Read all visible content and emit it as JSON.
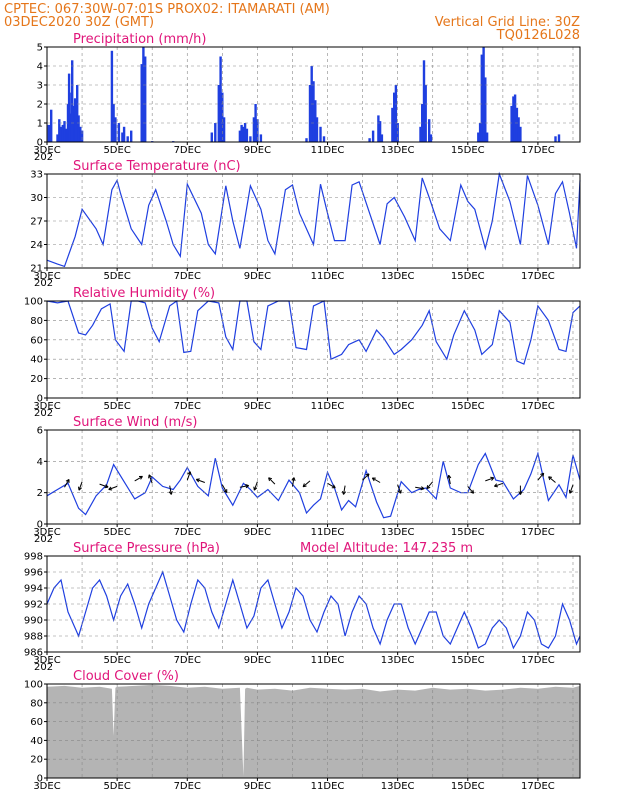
{
  "header": {
    "left_line1": "CPTEC:   067:30W-07:01S   PROX02: ITAMARATI (AM)",
    "left_line2": "03DEC2020 30Z (GMT)",
    "right_line2": "Vertical Grid Line: 30Z",
    "right_line3": "TQ0126L028"
  },
  "colors": {
    "header": "#e5761a",
    "title": "#e0157a",
    "series": "#1f3fe0",
    "cloud": "#b4b4b4",
    "grid": "#888888"
  },
  "x_axis": {
    "tick_labels": [
      "3DEC",
      "5DEC",
      "7DEC",
      "9DEC",
      "11DEC",
      "13DEC",
      "15DEC",
      "17DEC"
    ],
    "tick_days": [
      0,
      2,
      4,
      6,
      8,
      10,
      12,
      14
    ],
    "year_stub": "202",
    "range_days": [
      0,
      15.2
    ],
    "vertical_grid_interval_days": 1
  },
  "chart_data": [
    {
      "id": "precip",
      "type": "bar",
      "title": "Precipitation (mm/h)",
      "ylim": [
        0,
        5
      ],
      "yticks": [
        0,
        1,
        2,
        3,
        4,
        5
      ],
      "unit": "mm/h",
      "points": [
        [
          0.05,
          0.9
        ],
        [
          0.12,
          1.7
        ],
        [
          0.3,
          0.4
        ],
        [
          0.35,
          1.2
        ],
        [
          0.4,
          0.8
        ],
        [
          0.45,
          0.9
        ],
        [
          0.5,
          1.1
        ],
        [
          0.55,
          0.7
        ],
        [
          0.6,
          2.0
        ],
        [
          0.63,
          3.6
        ],
        [
          0.66,
          1.5
        ],
        [
          0.7,
          2.6
        ],
        [
          0.72,
          4.3
        ],
        [
          0.76,
          1.9
        ],
        [
          0.8,
          2.3
        ],
        [
          0.82,
          1.6
        ],
        [
          0.86,
          3.0
        ],
        [
          0.9,
          1.4
        ],
        [
          0.95,
          0.8
        ],
        [
          1.0,
          0.6
        ],
        [
          1.85,
          4.8
        ],
        [
          1.9,
          2.0
        ],
        [
          1.95,
          1.3
        ],
        [
          2.05,
          1.0
        ],
        [
          2.15,
          0.5
        ],
        [
          2.2,
          0.8
        ],
        [
          2.3,
          0.3
        ],
        [
          2.4,
          0.6
        ],
        [
          2.7,
          4.1
        ],
        [
          2.75,
          5.0
        ],
        [
          2.8,
          4.5
        ],
        [
          3.0,
          0.05
        ],
        [
          3.6,
          0.05
        ],
        [
          4.7,
          0.5
        ],
        [
          4.8,
          1.0
        ],
        [
          4.9,
          3.0
        ],
        [
          4.95,
          4.5
        ],
        [
          5.0,
          2.6
        ],
        [
          5.05,
          1.3
        ],
        [
          5.5,
          0.6
        ],
        [
          5.55,
          0.9
        ],
        [
          5.6,
          0.8
        ],
        [
          5.65,
          1.0
        ],
        [
          5.7,
          0.7
        ],
        [
          5.8,
          0.3
        ],
        [
          5.9,
          1.3
        ],
        [
          5.95,
          2.0
        ],
        [
          6.0,
          1.2
        ],
        [
          6.1,
          0.4
        ],
        [
          7.4,
          0.2
        ],
        [
          7.5,
          3.0
        ],
        [
          7.55,
          4.0
        ],
        [
          7.6,
          3.2
        ],
        [
          7.65,
          2.2
        ],
        [
          7.7,
          1.3
        ],
        [
          7.8,
          0.8
        ],
        [
          7.9,
          0.3
        ],
        [
          9.2,
          0.2
        ],
        [
          9.3,
          0.6
        ],
        [
          9.45,
          1.4
        ],
        [
          9.5,
          1.1
        ],
        [
          9.55,
          0.4
        ],
        [
          9.85,
          1.8
        ],
        [
          9.9,
          2.6
        ],
        [
          9.95,
          3.0
        ],
        [
          10.0,
          1.0
        ],
        [
          10.65,
          0.8
        ],
        [
          10.7,
          2.0
        ],
        [
          10.75,
          4.3
        ],
        [
          10.8,
          3.0
        ],
        [
          10.9,
          1.2
        ],
        [
          10.95,
          0.4
        ],
        [
          12.3,
          0.5
        ],
        [
          12.35,
          1.0
        ],
        [
          12.4,
          4.6
        ],
        [
          12.45,
          5.0
        ],
        [
          12.5,
          3.4
        ],
        [
          12.55,
          0.5
        ],
        [
          13.25,
          1.9
        ],
        [
          13.3,
          2.4
        ],
        [
          13.35,
          2.5
        ],
        [
          13.4,
          1.8
        ],
        [
          13.45,
          1.3
        ],
        [
          13.5,
          0.8
        ],
        [
          14.5,
          0.3
        ],
        [
          14.6,
          0.4
        ]
      ]
    },
    {
      "id": "temp",
      "type": "line",
      "title": "Surface Temperature (nC)",
      "ylim": [
        21,
        33
      ],
      "yticks": [
        21,
        24,
        27,
        30,
        33
      ],
      "unit": "C",
      "x": [
        0,
        0.3,
        0.5,
        0.8,
        1.0,
        1.4,
        1.6,
        1.85,
        2.0,
        2.1,
        2.4,
        2.7,
        2.9,
        3.1,
        3.4,
        3.6,
        3.8,
        4.0,
        4.4,
        4.6,
        4.8,
        5.1,
        5.3,
        5.5,
        5.8,
        6.1,
        6.3,
        6.5,
        6.8,
        7.0,
        7.2,
        7.6,
        7.8,
        8.0,
        8.2,
        8.5,
        8.7,
        8.9,
        9.2,
        9.5,
        9.7,
        9.9,
        10.2,
        10.5,
        10.7,
        10.9,
        11.2,
        11.5,
        11.8,
        12.0,
        12.2,
        12.5,
        12.7,
        12.9,
        13.2,
        13.5,
        13.7,
        14.0,
        14.3,
        14.5,
        14.7,
        14.9,
        15.1,
        15.2
      ],
      "y": [
        22.0,
        21.5,
        21.2,
        25.0,
        28.5,
        26.0,
        24.0,
        31.0,
        32.2,
        30.5,
        26.0,
        24.0,
        29.0,
        31.0,
        27.0,
        24.0,
        22.5,
        31.7,
        28.0,
        24.0,
        22.8,
        31.5,
        27.0,
        23.5,
        31.5,
        28.5,
        24.5,
        22.8,
        31.0,
        31.6,
        28.0,
        24.0,
        31.7,
        28.0,
        24.5,
        24.5,
        31.6,
        32.0,
        28.0,
        24.0,
        29.2,
        30.0,
        27.5,
        24.5,
        32.5,
        30.0,
        26.0,
        24.5,
        31.6,
        29.5,
        28.5,
        23.5,
        27.0,
        33.0,
        29.5,
        24.0,
        32.8,
        29.0,
        24.0,
        30.5,
        32.0,
        28.0,
        23.5,
        32.2
      ]
    },
    {
      "id": "rh",
      "type": "line",
      "title": "Relative Humidity (%)",
      "ylim": [
        0,
        100
      ],
      "yticks": [
        0,
        20,
        40,
        60,
        80,
        100
      ],
      "unit": "%",
      "x": [
        0,
        0.3,
        0.6,
        0.9,
        1.1,
        1.3,
        1.55,
        1.8,
        1.95,
        2.2,
        2.4,
        2.6,
        2.8,
        3.0,
        3.2,
        3.5,
        3.7,
        3.9,
        4.1,
        4.3,
        4.6,
        4.9,
        5.1,
        5.3,
        5.5,
        5.7,
        5.9,
        6.1,
        6.3,
        6.6,
        6.9,
        7.1,
        7.4,
        7.6,
        7.9,
        8.1,
        8.4,
        8.6,
        8.9,
        9.1,
        9.4,
        9.6,
        9.9,
        10.1,
        10.4,
        10.7,
        10.9,
        11.1,
        11.4,
        11.6,
        11.9,
        12.2,
        12.4,
        12.7,
        12.9,
        13.2,
        13.4,
        13.6,
        13.8,
        14.0,
        14.3,
        14.6,
        14.8,
        15.0,
        15.2
      ],
      "y": [
        100,
        98,
        100,
        67,
        65,
        75,
        92,
        97,
        60,
        48,
        100,
        100,
        98,
        72,
        58,
        95,
        100,
        47,
        48,
        90,
        100,
        98,
        63,
        50,
        100,
        100,
        58,
        50,
        95,
        100,
        100,
        52,
        50,
        95,
        100,
        40,
        45,
        55,
        60,
        48,
        70,
        62,
        45,
        50,
        60,
        75,
        90,
        58,
        40,
        65,
        90,
        70,
        45,
        55,
        90,
        78,
        38,
        35,
        60,
        95,
        80,
        50,
        48,
        88,
        95
      ]
    },
    {
      "id": "wind",
      "type": "line",
      "title": "Surface Wind (m/s)",
      "ylim": [
        0,
        6
      ],
      "yticks": [
        0,
        2,
        4,
        6
      ],
      "unit": "m/s",
      "x": [
        0,
        0.3,
        0.6,
        0.9,
        1.1,
        1.4,
        1.7,
        1.9,
        2.2,
        2.5,
        2.8,
        3.0,
        3.3,
        3.6,
        3.8,
        4.0,
        4.3,
        4.6,
        4.8,
        5.0,
        5.3,
        5.6,
        5.8,
        6.0,
        6.3,
        6.6,
        6.9,
        7.2,
        7.4,
        7.6,
        7.8,
        8.0,
        8.2,
        8.4,
        8.6,
        8.8,
        9.1,
        9.4,
        9.6,
        9.8,
        10.1,
        10.4,
        10.6,
        10.8,
        11.1,
        11.3,
        11.5,
        11.8,
        12.0,
        12.3,
        12.5,
        12.8,
        13.0,
        13.3,
        13.6,
        13.8,
        14.0,
        14.3,
        14.6,
        14.8,
        15.0,
        15.2
      ],
      "y": [
        1.8,
        2.2,
        2.6,
        1.0,
        0.6,
        1.8,
        2.5,
        3.8,
        2.7,
        1.6,
        2.0,
        3.0,
        2.4,
        2.2,
        2.8,
        3.6,
        2.4,
        1.8,
        4.2,
        2.3,
        1.2,
        2.6,
        2.2,
        1.7,
        2.2,
        1.5,
        2.8,
        2.0,
        0.7,
        1.2,
        1.6,
        3.3,
        2.3,
        0.9,
        1.5,
        1.1,
        3.4,
        1.4,
        0.4,
        0.5,
        2.7,
        2.0,
        2.2,
        2.3,
        1.6,
        4.0,
        2.3,
        2.0,
        2.0,
        3.8,
        4.5,
        2.8,
        2.7,
        1.6,
        2.2,
        3.2,
        4.5,
        1.5,
        2.5,
        1.7,
        4.4,
        2.8
      ]
    },
    {
      "id": "pressure",
      "type": "line",
      "title": "Surface Pressure (hPa)",
      "annotation": "Model Altitude: 147.235 m",
      "ylim": [
        986,
        998
      ],
      "yticks": [
        986,
        988,
        990,
        992,
        994,
        996,
        998
      ],
      "unit": "hPa",
      "x": [
        0,
        0.2,
        0.4,
        0.6,
        0.9,
        1.1,
        1.3,
        1.5,
        1.7,
        1.9,
        2.1,
        2.3,
        2.5,
        2.7,
        2.9,
        3.1,
        3.3,
        3.5,
        3.7,
        3.9,
        4.1,
        4.3,
        4.5,
        4.7,
        4.9,
        5.1,
        5.3,
        5.5,
        5.7,
        5.9,
        6.1,
        6.3,
        6.5,
        6.7,
        6.9,
        7.1,
        7.3,
        7.5,
        7.7,
        7.9,
        8.1,
        8.3,
        8.5,
        8.7,
        8.9,
        9.1,
        9.3,
        9.5,
        9.7,
        9.9,
        10.1,
        10.3,
        10.5,
        10.7,
        10.9,
        11.1,
        11.3,
        11.5,
        11.7,
        11.9,
        12.1,
        12.3,
        12.5,
        12.7,
        12.9,
        13.1,
        13.3,
        13.5,
        13.7,
        13.9,
        14.1,
        14.3,
        14.5,
        14.7,
        14.9,
        15.1,
        15.2
      ],
      "y": [
        992,
        994,
        995,
        991,
        988,
        991,
        994,
        995,
        993,
        990,
        993,
        994.5,
        992,
        989,
        992,
        994,
        996,
        993,
        990,
        988.5,
        992,
        995,
        994,
        991,
        989,
        992,
        995,
        992,
        989,
        990.5,
        994,
        995,
        992,
        989,
        991,
        994,
        993,
        990,
        988.5,
        991,
        993,
        992,
        988,
        991,
        993,
        992,
        989,
        987,
        990,
        992,
        992,
        989,
        987,
        989,
        991,
        991,
        988,
        987,
        989,
        991,
        989,
        986.5,
        987,
        989,
        990,
        989,
        986.5,
        988,
        991,
        990,
        987,
        986.5,
        988,
        992,
        990,
        987,
        988
      ]
    },
    {
      "id": "cloud",
      "type": "area",
      "title": "Cloud Cover (%)",
      "ylim": [
        0,
        100
      ],
      "yticks": [
        0,
        20,
        40,
        60,
        80,
        100
      ],
      "unit": "%",
      "x": [
        0,
        0.5,
        1.0,
        1.5,
        1.85,
        1.9,
        1.95,
        2.0,
        2.5,
        3.0,
        3.5,
        4.0,
        4.5,
        5.0,
        5.5,
        5.6,
        5.65,
        5.7,
        6.0,
        6.5,
        7.0,
        7.5,
        8.0,
        8.5,
        9.0,
        9.5,
        10.0,
        10.5,
        11.0,
        11.5,
        12.0,
        12.5,
        13.0,
        13.5,
        14.0,
        14.5,
        15.0,
        15.2
      ],
      "y": [
        97,
        98,
        96,
        97,
        95,
        45,
        96,
        97,
        98,
        99,
        98,
        96,
        97,
        95,
        96,
        2,
        95,
        96,
        94,
        95,
        93,
        96,
        95,
        94,
        95,
        92,
        94,
        93,
        96,
        94,
        95,
        93,
        94,
        96,
        95,
        97,
        96,
        98
      ]
    }
  ]
}
